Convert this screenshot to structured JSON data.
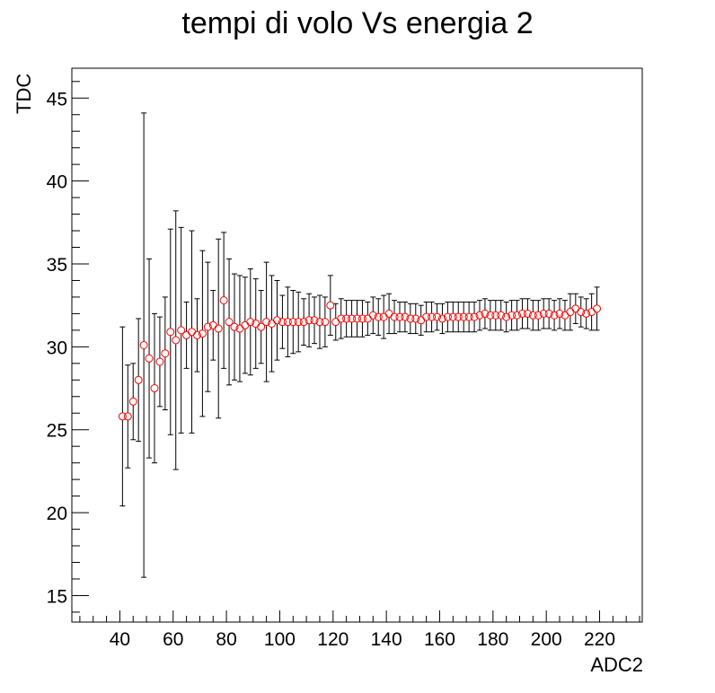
{
  "chart_data": {
    "type": "scatter",
    "title": "tempi di volo Vs energia 2",
    "xlabel": "ADC2",
    "ylabel": "TDC",
    "xlim": [
      22,
      236
    ],
    "ylim": [
      13.4,
      46.8
    ],
    "x_major_ticks": [
      40,
      60,
      80,
      100,
      120,
      140,
      160,
      180,
      200,
      220
    ],
    "y_major_ticks": [
      15,
      20,
      25,
      30,
      35,
      40,
      45
    ],
    "grid": false,
    "marker": "open-circle",
    "marker_color": "#ff0000",
    "errorbar_color": "#000000",
    "series": [
      {
        "x": [
          41,
          43,
          45,
          47,
          49,
          51,
          53,
          55,
          57,
          59,
          61,
          63,
          65,
          67,
          69,
          71,
          73,
          75,
          77,
          79,
          81,
          83,
          85,
          87,
          89,
          91,
          93,
          95,
          97,
          99,
          101,
          103,
          105,
          107,
          109,
          111,
          113,
          115,
          117,
          119,
          121,
          123,
          125,
          127,
          129,
          131,
          133,
          135,
          137,
          139,
          141,
          143,
          145,
          147,
          149,
          151,
          153,
          155,
          157,
          159,
          161,
          163,
          165,
          167,
          169,
          171,
          173,
          175,
          177,
          179,
          181,
          183,
          185,
          187,
          189,
          191,
          193,
          195,
          197,
          199,
          201,
          203,
          205,
          207,
          209,
          211,
          213,
          215,
          217,
          219
        ],
        "y": [
          25.8,
          25.8,
          26.7,
          28.0,
          30.1,
          29.3,
          27.5,
          29.1,
          29.6,
          30.9,
          30.4,
          31.0,
          30.7,
          30.9,
          30.7,
          30.8,
          31.2,
          31.3,
          31.1,
          32.8,
          31.5,
          31.2,
          31.1,
          31.3,
          31.5,
          31.4,
          31.2,
          31.5,
          31.4,
          31.6,
          31.5,
          31.5,
          31.5,
          31.5,
          31.5,
          31.6,
          31.6,
          31.5,
          31.5,
          32.5,
          31.5,
          31.7,
          31.7,
          31.7,
          31.7,
          31.7,
          31.7,
          31.9,
          31.8,
          31.8,
          32.0,
          31.8,
          31.8,
          31.8,
          31.7,
          31.7,
          31.6,
          31.8,
          31.8,
          31.8,
          31.7,
          31.8,
          31.8,
          31.8,
          31.8,
          31.8,
          31.8,
          31.9,
          32.0,
          31.9,
          31.9,
          31.9,
          31.8,
          31.9,
          31.9,
          32.0,
          32.0,
          31.9,
          31.9,
          32.0,
          32.0,
          31.9,
          32.0,
          31.9,
          32.1,
          32.3,
          32.1,
          32.0,
          32.1,
          32.3
        ],
        "yerr": [
          5.4,
          3.1,
          2.3,
          3.7,
          14.0,
          6.0,
          4.5,
          2.7,
          3.4,
          6.2,
          7.8,
          6.2,
          2.0,
          6.1,
          2.2,
          5.0,
          3.9,
          2.1,
          5.4,
          4.1,
          3.8,
          3.2,
          3.2,
          2.9,
          3.2,
          2.7,
          2.2,
          3.6,
          2.9,
          2.4,
          1.6,
          2.1,
          1.9,
          1.8,
          1.4,
          1.6,
          1.4,
          1.6,
          1.5,
          1.8,
          1.1,
          1.2,
          1.1,
          1.1,
          1.1,
          1.1,
          1.0,
          1.1,
          1.1,
          1.3,
          1.2,
          1.0,
          0.9,
          0.9,
          0.9,
          0.9,
          0.9,
          0.9,
          0.9,
          0.8,
          0.9,
          0.9,
          0.9,
          0.9,
          0.9,
          0.9,
          0.9,
          0.9,
          0.9,
          0.9,
          0.9,
          0.9,
          0.9,
          0.9,
          0.9,
          0.9,
          0.9,
          0.9,
          0.9,
          0.9,
          0.9,
          0.9,
          0.9,
          0.9,
          1.1,
          0.9,
          0.9,
          0.9,
          1.1,
          1.3
        ]
      }
    ]
  }
}
